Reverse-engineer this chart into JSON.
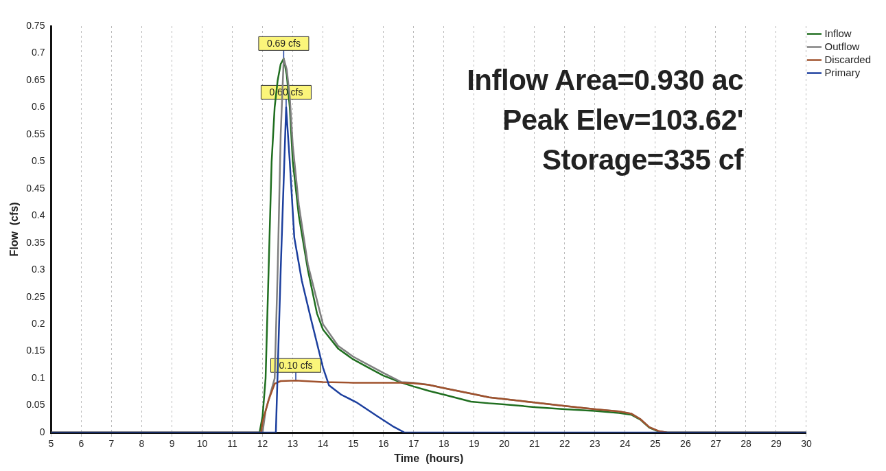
{
  "chart_data": {
    "type": "line",
    "xlabel": "Time  (hours)",
    "ylabel": "Flow  (cfs)",
    "xlim": [
      5,
      30
    ],
    "xticks": [
      5,
      6,
      7,
      8,
      9,
      10,
      11,
      12,
      13,
      14,
      15,
      16,
      17,
      18,
      19,
      20,
      21,
      22,
      23,
      24,
      25,
      26,
      27,
      28,
      29,
      30
    ],
    "ylim": [
      0,
      0.75
    ],
    "yticks": [
      0,
      0.05,
      0.1,
      0.15,
      0.2,
      0.25,
      0.3,
      0.35,
      0.4,
      0.45,
      0.5,
      0.55,
      0.6,
      0.65,
      0.7,
      0.75
    ],
    "grid": "x",
    "legend": "top right",
    "marker": "none",
    "line_style": "solid",
    "series": [
      {
        "name": "Inflow",
        "color": "#1f6e1f",
        "type": "line",
        "x": [
          5,
          11.9,
          12.0,
          12.1,
          12.2,
          12.3,
          12.4,
          12.5,
          12.6,
          12.7,
          12.8,
          12.9,
          13.0,
          13.2,
          13.5,
          13.8,
          14.0,
          14.5,
          15.0,
          15.5,
          16.0,
          16.6,
          17.0,
          17.5,
          18.0,
          18.9,
          19.5,
          20.0,
          21.0,
          22.0,
          23.0,
          23.8,
          24.2,
          24.5,
          24.8,
          25.1,
          25.4,
          30
        ],
        "values": [
          0,
          0,
          0.03,
          0.1,
          0.3,
          0.5,
          0.6,
          0.65,
          0.68,
          0.69,
          0.66,
          0.6,
          0.5,
          0.4,
          0.3,
          0.22,
          0.19,
          0.155,
          0.135,
          0.12,
          0.105,
          0.092,
          0.085,
          0.077,
          0.07,
          0.057,
          0.054,
          0.052,
          0.047,
          0.043,
          0.04,
          0.036,
          0.033,
          0.024,
          0.009,
          0.002,
          0,
          0
        ]
      },
      {
        "name": "Outflow",
        "color": "#7f7f7f",
        "x": [
          5,
          12.0,
          12.1,
          12.2,
          12.4,
          12.5,
          12.6,
          12.7,
          12.8,
          12.9,
          13.0,
          13.2,
          13.5,
          14.0,
          14.5,
          15.0,
          15.5,
          16.0,
          16.6,
          17.0,
          17.5,
          18.0,
          18.9,
          19.5,
          20.9,
          22.0,
          23.0,
          23.8,
          24.2,
          24.5,
          24.8,
          25.1,
          25.4,
          30
        ],
        "values": [
          0,
          0,
          0.04,
          0.06,
          0.1,
          0.3,
          0.55,
          0.69,
          0.67,
          0.62,
          0.53,
          0.42,
          0.31,
          0.2,
          0.16,
          0.14,
          0.125,
          0.11,
          0.093,
          0.092,
          0.088,
          0.082,
          0.072,
          0.065,
          0.056,
          0.049,
          0.043,
          0.039,
          0.035,
          0.025,
          0.01,
          0.003,
          0,
          0
        ]
      },
      {
        "name": "Discarded",
        "color": "#a0522d",
        "x": [
          5,
          11.95,
          12.0,
          12.1,
          12.2,
          12.4,
          12.6,
          13.1,
          14.0,
          15.0,
          16.0,
          16.6,
          17.0,
          17.5,
          18.0,
          18.9,
          19.5,
          20.9,
          22.0,
          23.0,
          23.8,
          24.2,
          24.5,
          24.8,
          25.1,
          25.4,
          30
        ],
        "values": [
          0,
          0,
          0.02,
          0.04,
          0.06,
          0.09,
          0.095,
          0.096,
          0.093,
          0.092,
          0.092,
          0.092,
          0.091,
          0.088,
          0.082,
          0.072,
          0.065,
          0.056,
          0.049,
          0.043,
          0.039,
          0.035,
          0.025,
          0.01,
          0.003,
          0,
          0
        ]
      },
      {
        "name": "Primary",
        "color": "#1c3f9e",
        "x": [
          5,
          12.44,
          12.6,
          12.78,
          12.9,
          13.05,
          13.3,
          13.6,
          14.0,
          14.2,
          14.6,
          15.1,
          15.8,
          16.3,
          16.7,
          30
        ],
        "values": [
          0,
          0,
          0.3,
          0.6,
          0.5,
          0.36,
          0.28,
          0.21,
          0.12,
          0.087,
          0.07,
          0.056,
          0.03,
          0.012,
          0,
          0
        ]
      }
    ],
    "annotations": [
      {
        "text": "0.69 cfs",
        "x": 12.7,
        "y": 0.69
      },
      {
        "text": "0.60 cfs",
        "x": 12.78,
        "y": 0.6
      },
      {
        "text": "0.10 cfs",
        "x": 13.1,
        "y": 0.096
      },
      "Inflow Area=0.930 ac",
      "Peak Elev=103.62'",
      "Storage=335 cf"
    ]
  }
}
